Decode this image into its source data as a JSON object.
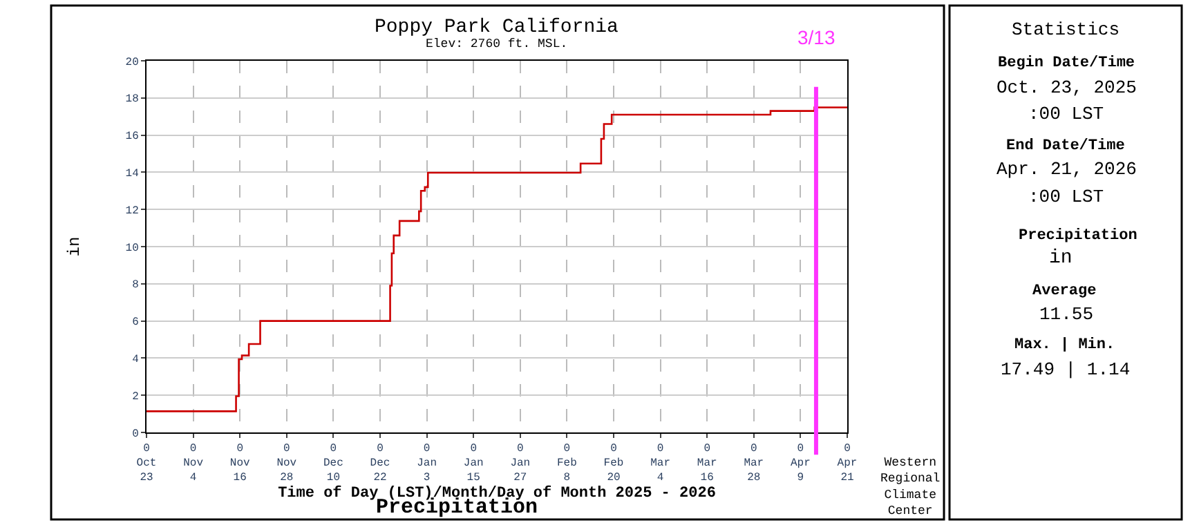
{
  "chart_data": {
    "type": "step",
    "title": "Poppy Park California",
    "subtitle": "Elev: 2760 ft. MSL.",
    "xlabel": "Time of Day (LST)/Month/Day of Month 2025 - 2026",
    "ylabel": "in",
    "x": [
      "2025-10-23",
      "2025-11-15",
      "2025-11-15T17:00",
      "2025-11-16T12:00",
      "2025-11-18T07:00",
      "2025-11-21T05:00",
      "2025-12-24T14:00",
      "2025-12-25",
      "2025-12-25T12:00",
      "2025-12-27",
      "2026-01-01",
      "2026-01-01T12:00",
      "2026-01-02T12:00",
      "2026-01-03T07:00",
      "2026-02-11T12:00",
      "2026-02-16T19:00",
      "2026-02-17T12:00",
      "2026-02-19T12:00",
      "2026-04-01T07:00",
      "2026-04-12T14:00",
      "2026-04-21"
    ],
    "series": [
      {
        "color": "#cc0000",
        "values": [
          1.14,
          1.95,
          3.94,
          4.14,
          4.76,
          6.0,
          7.9,
          9.64,
          10.6,
          11.38,
          11.9,
          13.0,
          13.2,
          13.98,
          14.47,
          15.8,
          16.6,
          17.1,
          17.3,
          17.49,
          17.49
        ]
      }
    ],
    "xlim": [
      "2025-10-23",
      "2026-04-21"
    ],
    "xticks": [
      {
        "value": "2025-10-23",
        "label": "0\nOct\n23"
      },
      {
        "value": "2025-11-04",
        "label": "0\nNov\n4"
      },
      {
        "value": "2025-11-16",
        "label": "0\nNov\n16"
      },
      {
        "value": "2025-11-28",
        "label": "0\nNov\n28"
      },
      {
        "value": "2025-12-10",
        "label": "0\nDec\n10"
      },
      {
        "value": "2025-12-22",
        "label": "0\nDec\n22"
      },
      {
        "value": "2026-01-03",
        "label": "0\nJan\n3"
      },
      {
        "value": "2026-01-15",
        "label": "0\nJan\n15"
      },
      {
        "value": "2026-01-27",
        "label": "0\nJan\n27"
      },
      {
        "value": "2026-02-08",
        "label": "0\nFeb\n8"
      },
      {
        "value": "2026-02-20",
        "label": "0\nFeb\n20"
      },
      {
        "value": "2026-03-04",
        "label": "0\nMar\n4"
      },
      {
        "value": "2026-03-16",
        "label": "0\nMar\n16"
      },
      {
        "value": "2026-03-28",
        "label": "0\nMar\n28"
      },
      {
        "value": "2026-04-09",
        "label": "0\nApr\n9"
      },
      {
        "value": "2026-04-21",
        "label": "0\nApr\n21"
      }
    ],
    "ylim": [
      0,
      20
    ],
    "yticks": [
      0,
      2,
      4,
      6,
      8,
      10,
      12,
      14,
      16,
      18,
      20
    ],
    "grid": true,
    "line_style": "solid",
    "marker": "none",
    "ref_lines": [
      {
        "axis": "x",
        "value": "2026-04-13",
        "label": "3/13",
        "color": "#ff33ff"
      }
    ],
    "annotations": [
      "Statistics",
      "Begin Date/Time",
      "Oct. 23, 2025",
      ":00 LST",
      "End Date/Time",
      "Apr. 21, 2026",
      ":00 LST",
      "Precipitation",
      "in",
      "Average",
      "11.55",
      "Max. | Min.",
      "17.49 | 1.14",
      "Precipitation",
      "Western\nRegional\nClimate\nCenter"
    ]
  }
}
